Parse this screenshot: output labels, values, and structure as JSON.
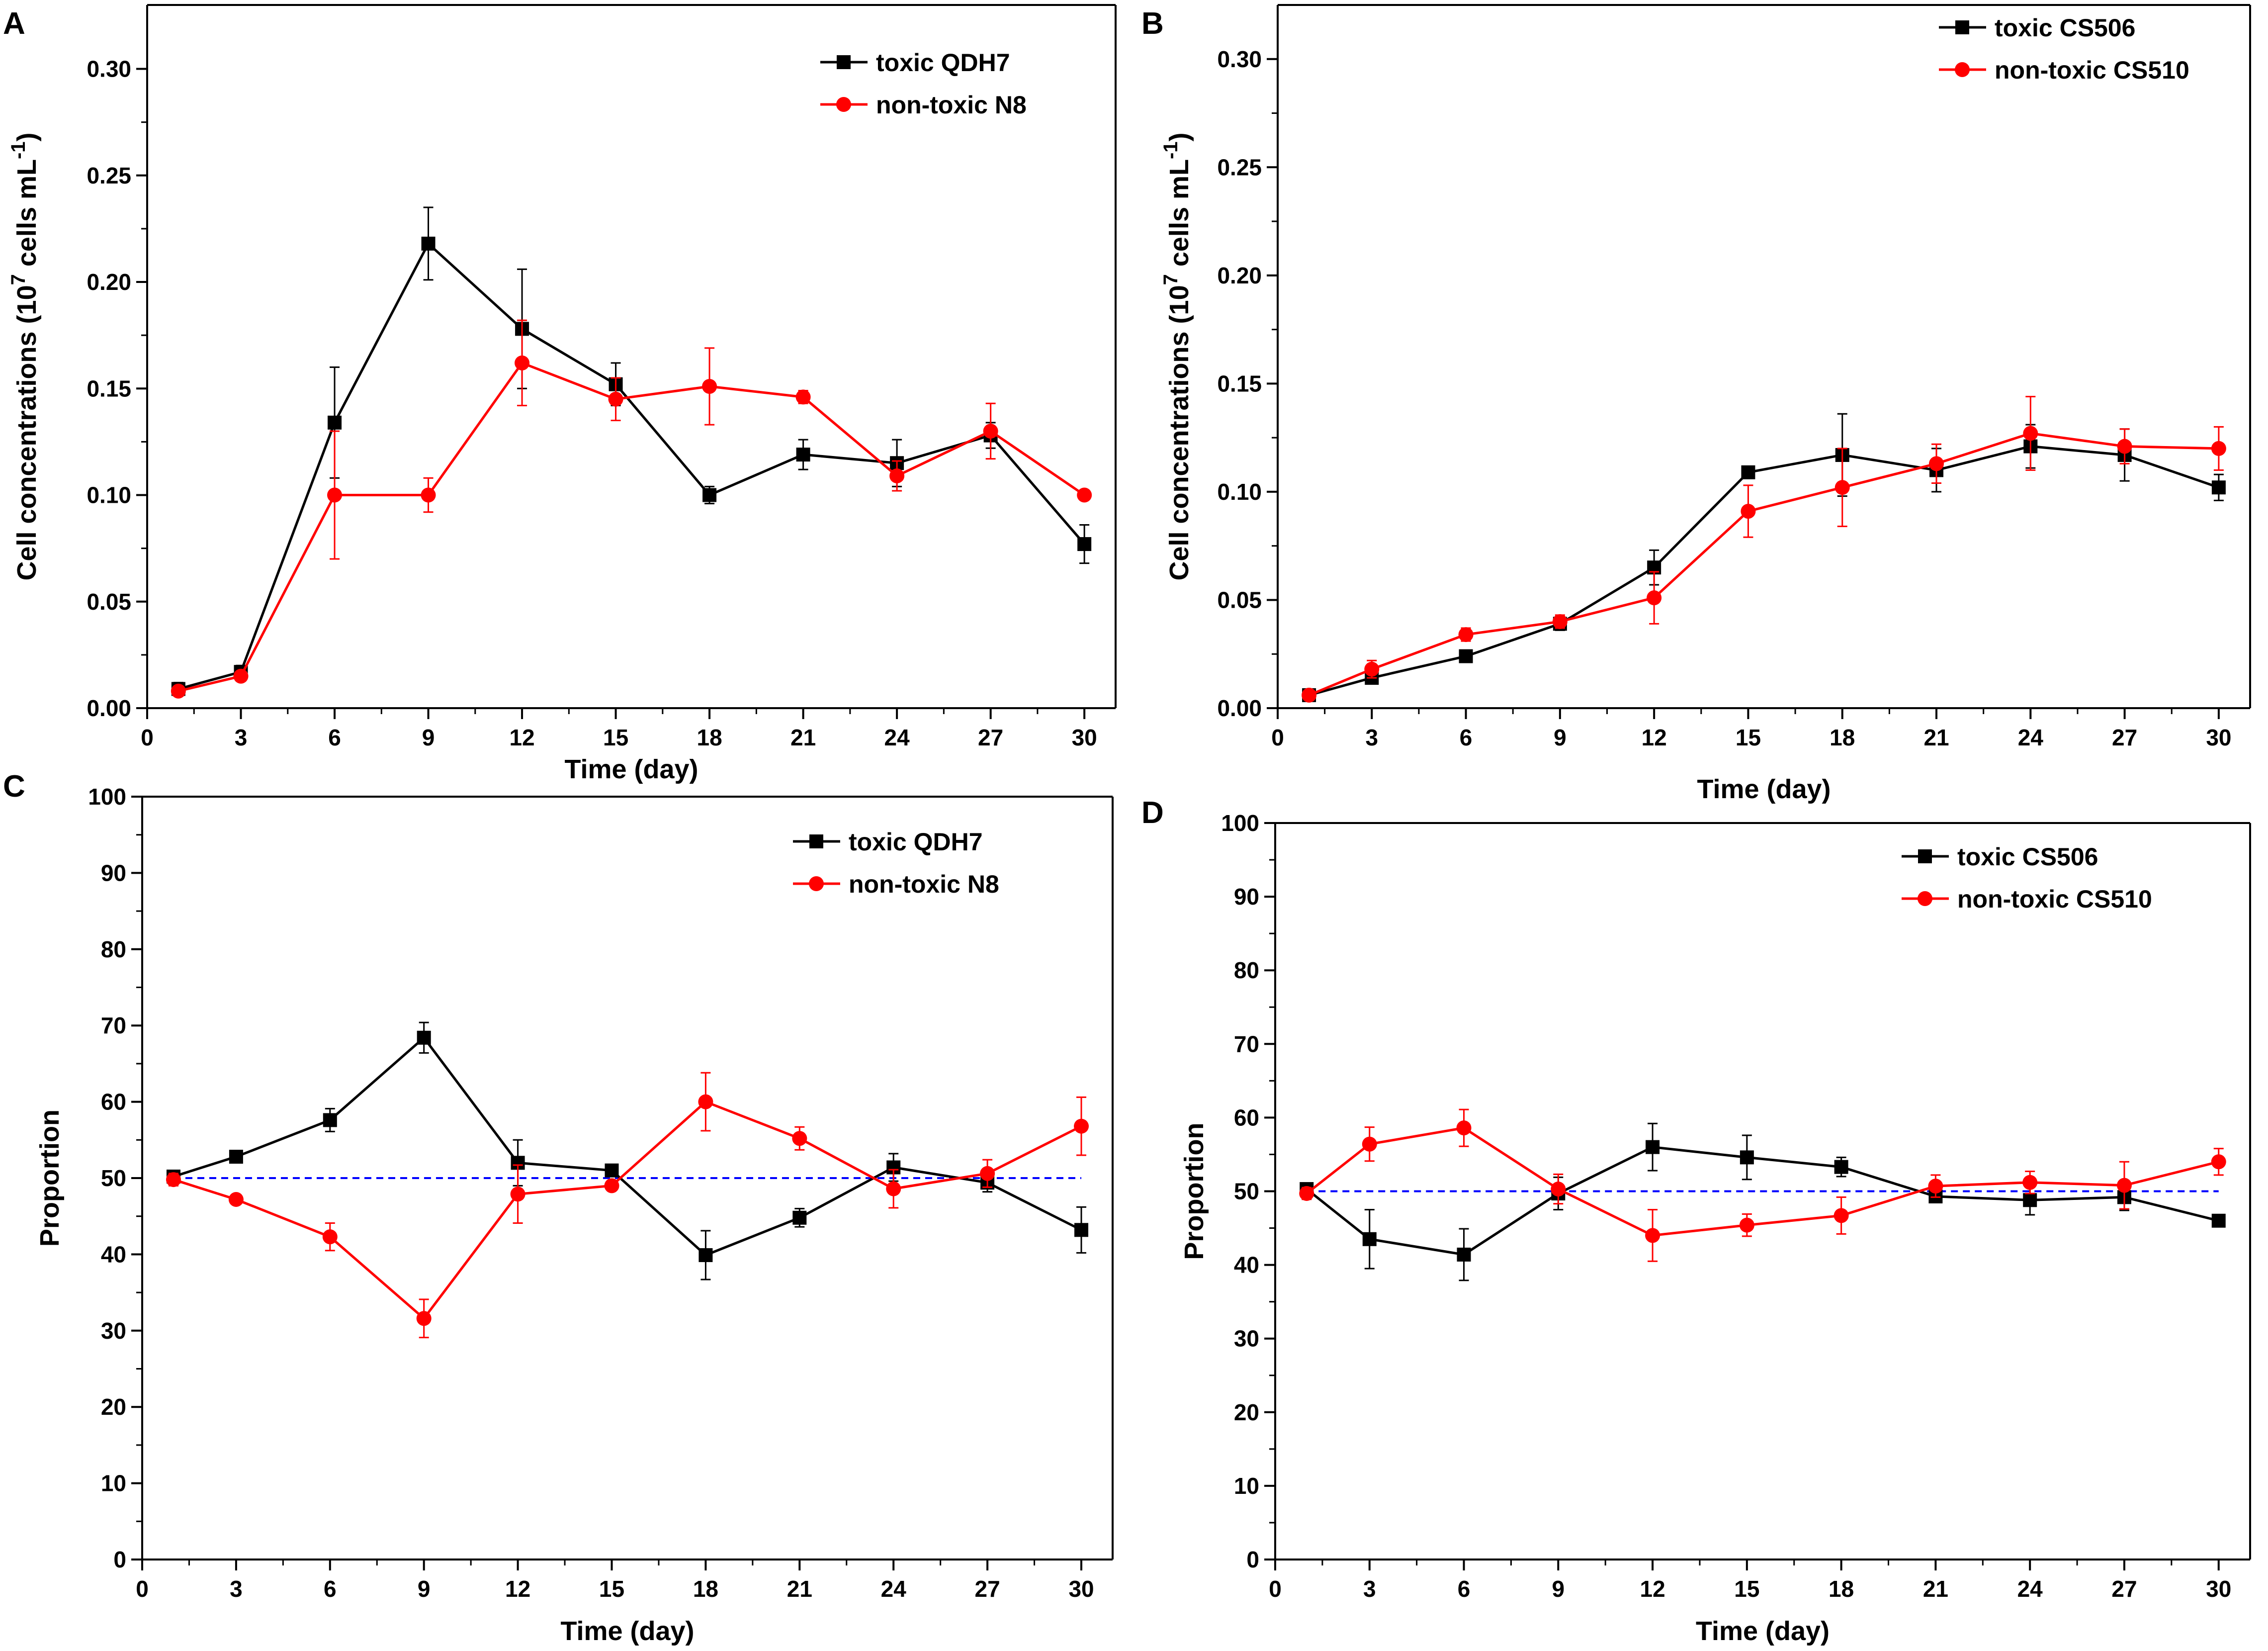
{
  "colors": {
    "toxic": "#000000",
    "nontoxic": "#ff0000",
    "reference": "#0000ff"
  },
  "chart_data": [
    {
      "panel": "A",
      "type": "line",
      "xlabel": "Time (day)",
      "ylabel": "Cell concentrations (10^7 cells mL^-1)",
      "ylabel_main": "Cell concentrations (10",
      "ylabel_exp1": "7",
      "ylabel_mid": " cells mL",
      "ylabel_exp2": "-1",
      "ylabel_end": ")",
      "xlim": [
        0,
        31
      ],
      "ylim": [
        0,
        0.33
      ],
      "xticks": [
        0,
        3,
        6,
        9,
        12,
        15,
        18,
        21,
        24,
        27,
        30
      ],
      "yticks": [
        0,
        0.05,
        0.1,
        0.15,
        0.2,
        0.25,
        0.3
      ],
      "yticklabels": [
        "0.00",
        "0.05",
        "0.10",
        "0.15",
        "0.20",
        "0.25",
        "0.30"
      ],
      "x": [
        1,
        3,
        6,
        9,
        12,
        15,
        18,
        21,
        24,
        27,
        30
      ],
      "series": [
        {
          "name": "toxic QDH7",
          "marker": "square",
          "color": "#000000",
          "values": [
            0.009,
            0.017,
            0.134,
            0.218,
            0.178,
            0.152,
            0.1,
            0.119,
            0.115,
            0.128,
            0.077
          ],
          "errors": [
            0.003,
            0.003,
            0.026,
            0.017,
            0.028,
            0.01,
            0.004,
            0.007,
            0.011,
            0.006,
            0.009
          ]
        },
        {
          "name": "non-toxic N8",
          "marker": "circle",
          "color": "#ff0000",
          "values": [
            0.008,
            0.015,
            0.1,
            0.1,
            0.162,
            0.145,
            0.151,
            0.146,
            0.109,
            0.13,
            0.1
          ],
          "errors": [
            0.002,
            0.002,
            0.03,
            0.008,
            0.02,
            0.01,
            0.018,
            0.003,
            0.007,
            0.013,
            0.002
          ]
        }
      ],
      "legend": {
        "placement": "top-right",
        "items": [
          "toxic QDH7",
          "non-toxic N8"
        ]
      }
    },
    {
      "panel": "B",
      "type": "line",
      "xlabel": "Time (day)",
      "ylabel": "Cell concentrations (10^7 cells mL^-1)",
      "ylabel_main": "Cell concentrations (10",
      "ylabel_exp1": "7",
      "ylabel_mid": " cells mL",
      "ylabel_exp2": "-1",
      "ylabel_end": ")",
      "xlim": [
        0,
        31
      ],
      "ylim": [
        0,
        0.325
      ],
      "xticks": [
        0,
        3,
        6,
        9,
        12,
        15,
        18,
        21,
        24,
        27,
        30
      ],
      "yticks": [
        0,
        0.05,
        0.1,
        0.15,
        0.2,
        0.25,
        0.3
      ],
      "yticklabels": [
        "0.00",
        "0.05",
        "0.10",
        "0.15",
        "0.20",
        "0.25",
        "0.30"
      ],
      "x": [
        1,
        3,
        6,
        9,
        12,
        15,
        18,
        21,
        24,
        27,
        30
      ],
      "series": [
        {
          "name": "toxic CS506",
          "marker": "square",
          "color": "#000000",
          "values": [
            0.006,
            0.014,
            0.024,
            0.039,
            0.065,
            0.109,
            0.117,
            0.11,
            0.121,
            0.117,
            0.102
          ],
          "errors": [
            0.002,
            0.002,
            0.002,
            0.003,
            0.008,
            0.002,
            0.019,
            0.01,
            0.01,
            0.012,
            0.006
          ]
        },
        {
          "name": "non-toxic CS510",
          "marker": "circle",
          "color": "#ff0000",
          "values": [
            0.006,
            0.018,
            0.034,
            0.04,
            0.051,
            0.091,
            0.102,
            0.113,
            0.127,
            0.121,
            0.12
          ],
          "errors": [
            0.002,
            0.004,
            0.003,
            0.003,
            0.012,
            0.012,
            0.018,
            0.009,
            0.017,
            0.008,
            0.01
          ]
        }
      ],
      "legend": {
        "placement": "top-right",
        "items": [
          "toxic CS506",
          "non-toxic CS510"
        ]
      }
    },
    {
      "panel": "C",
      "type": "line",
      "xlabel": "Time (day)",
      "ylabel": "Proportion",
      "xlim": [
        0,
        31
      ],
      "ylim": [
        0,
        100
      ],
      "xticks": [
        0,
        3,
        6,
        9,
        12,
        15,
        18,
        21,
        24,
        27,
        30
      ],
      "yticks": [
        0,
        10,
        20,
        30,
        40,
        50,
        60,
        70,
        80,
        90,
        100
      ],
      "yticklabels": [
        "0",
        "10",
        "20",
        "30",
        "40",
        "50",
        "60",
        "70",
        "80",
        "90",
        "100"
      ],
      "x": [
        1,
        3,
        6,
        9,
        12,
        15,
        18,
        21,
        24,
        27,
        30
      ],
      "reference_line": 50,
      "series": [
        {
          "name": "toxic QDH7",
          "marker": "square",
          "color": "#000000",
          "values": [
            50.2,
            52.8,
            57.6,
            68.4,
            52.0,
            51.0,
            39.9,
            44.8,
            51.4,
            49.4,
            43.2
          ],
          "errors": [
            0.8,
            0.5,
            1.5,
            2.0,
            3.0,
            0.6,
            3.2,
            1.2,
            1.8,
            1.2,
            3.0
          ]
        },
        {
          "name": "non-toxic N8",
          "marker": "circle",
          "color": "#ff0000",
          "values": [
            49.8,
            47.2,
            42.3,
            31.6,
            47.9,
            49.0,
            60.0,
            55.2,
            48.6,
            50.6,
            56.8
          ],
          "errors": [
            0.8,
            0.5,
            1.8,
            2.5,
            3.8,
            0.6,
            3.8,
            1.5,
            2.5,
            1.8,
            3.8
          ]
        }
      ],
      "legend": {
        "placement": "top-right",
        "items": [
          "toxic QDH7",
          "non-toxic N8"
        ]
      }
    },
    {
      "panel": "D",
      "type": "line",
      "xlabel": "Time (day)",
      "ylabel": "Proportion",
      "xlim": [
        0,
        31
      ],
      "ylim": [
        0,
        100
      ],
      "xticks": [
        0,
        3,
        6,
        9,
        12,
        15,
        18,
        21,
        24,
        27,
        30
      ],
      "yticks": [
        0,
        10,
        20,
        30,
        40,
        50,
        60,
        70,
        80,
        90,
        100
      ],
      "yticklabels": [
        "0",
        "10",
        "20",
        "30",
        "40",
        "50",
        "60",
        "70",
        "80",
        "90",
        "100"
      ],
      "x": [
        1,
        3,
        6,
        9,
        12,
        15,
        18,
        21,
        24,
        27,
        30
      ],
      "reference_line": 50,
      "series": [
        {
          "name": "toxic CS506",
          "marker": "square",
          "color": "#000000",
          "values": [
            50.3,
            43.5,
            41.4,
            49.7,
            56.0,
            54.6,
            53.3,
            49.3,
            48.8,
            49.2,
            46.0
          ],
          "errors": [
            0.8,
            4.0,
            3.5,
            2.2,
            3.2,
            3.0,
            1.3,
            0.8,
            2.0,
            1.8,
            0.6
          ]
        },
        {
          "name": "non-toxic CS510",
          "marker": "circle",
          "color": "#ff0000",
          "values": [
            49.7,
            56.4,
            58.6,
            50.3,
            44.0,
            45.4,
            46.7,
            50.7,
            51.2,
            50.8,
            54.0
          ],
          "errors": [
            0.8,
            2.3,
            2.5,
            2.0,
            3.5,
            1.5,
            2.5,
            1.5,
            1.5,
            3.2,
            1.8
          ]
        }
      ],
      "legend": {
        "placement": "top-right",
        "items": [
          "toxic CS506",
          "non-toxic CS510"
        ]
      }
    }
  ]
}
